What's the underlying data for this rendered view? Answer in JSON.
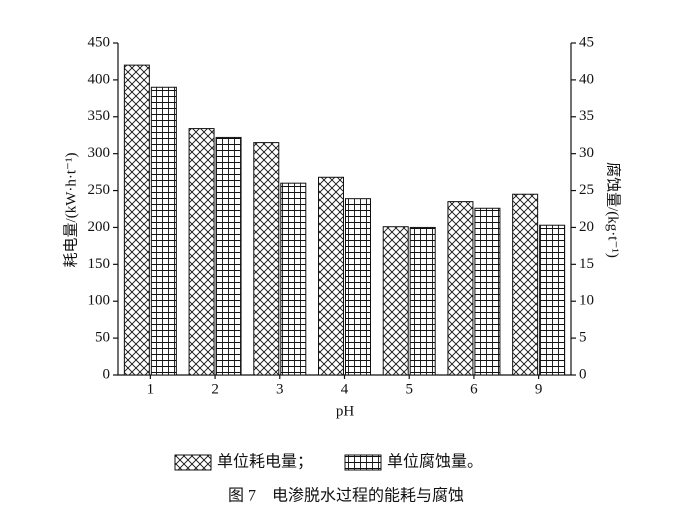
{
  "chart_data": {
    "type": "bar",
    "categories": [
      "1",
      "2",
      "3",
      "4",
      "5",
      "6",
      "9"
    ],
    "x_label": "pH",
    "y_label": "耗电量/(kW·h·t⁻¹)",
    "y2_label": "腐蚀量/(kg·t⁻¹)",
    "series": [
      {
        "name": "单位耗电量；",
        "color": "#111111",
        "hatch": "cross",
        "values": [
          420,
          334,
          315,
          268,
          201,
          235,
          245
        ]
      },
      {
        "name": "单位腐蚀量。",
        "color": "#111111",
        "hatch": "grid",
        "axis": "y2",
        "values": [
          39,
          32.2,
          26,
          23.9,
          20,
          22.6,
          20.3
        ]
      }
    ],
    "ylim": [
      0,
      450
    ],
    "yticks": [
      0,
      50,
      100,
      150,
      200,
      250,
      300,
      350,
      400,
      450
    ],
    "y2lim": [
      0,
      45
    ],
    "y2ticks": [
      0,
      5,
      10,
      15,
      20,
      25,
      30,
      35,
      40,
      45
    ],
    "caption": "图 7　电渗脱水过程的能耗与腐蚀"
  }
}
